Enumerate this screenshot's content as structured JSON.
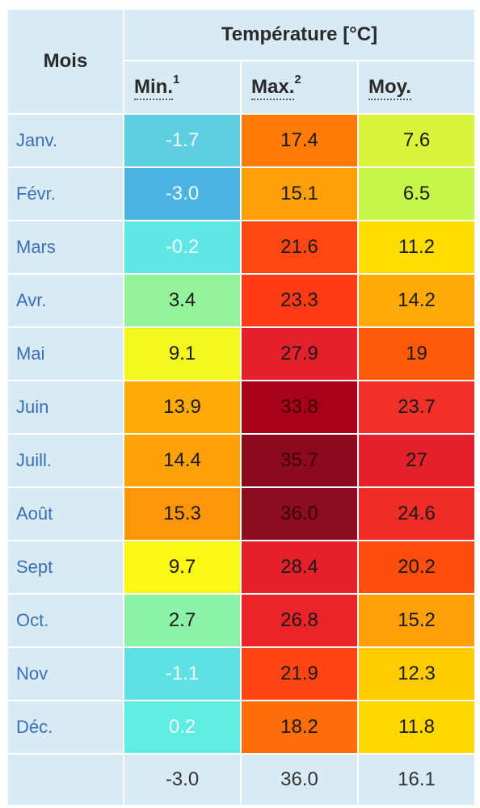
{
  "table": {
    "header": {
      "month_label": "Mois",
      "group_label": "Température [°C]",
      "columns": [
        {
          "label": "Min.",
          "sup": "1"
        },
        {
          "label": "Max.",
          "sup": "2"
        },
        {
          "label": "Moy.",
          "sup": ""
        }
      ]
    },
    "rows": [
      {
        "month": "Janv.",
        "min": "-1.7",
        "max": "17.4",
        "moy": "7.6",
        "colors": [
          "#5dcfe0",
          "#ff7b08",
          "#d9f43a"
        ]
      },
      {
        "month": "Févr.",
        "min": "-3.0",
        "max": "15.1",
        "moy": "6.5",
        "colors": [
          "#4cb4e2",
          "#ff9f0a",
          "#c6f54c"
        ]
      },
      {
        "month": "Mars",
        "min": "-0.2",
        "max": "21.6",
        "moy": "11.2",
        "colors": [
          "#5fe7e5",
          "#ff4714",
          "#ffdd00"
        ]
      },
      {
        "month": "Avr.",
        "min": "3.4",
        "max": "23.3",
        "moy": "14.2",
        "colors": [
          "#94f29a",
          "#ff3a16",
          "#ffaa08"
        ]
      },
      {
        "month": "Mai",
        "min": "9.1",
        "max": "27.9",
        "moy": "19",
        "colors": [
          "#f4f620",
          "#e4202c",
          "#ff5a0a"
        ]
      },
      {
        "month": "Juin",
        "min": "13.9",
        "max": "33.8",
        "moy": "23.7",
        "colors": [
          "#ffaa08",
          "#a8021a",
          "#f2302a"
        ]
      },
      {
        "month": "Juill.",
        "min": "14.4",
        "max": "35.7",
        "moy": "27",
        "colors": [
          "#ffa20a",
          "#8c0a1e",
          "#e4202c"
        ]
      },
      {
        "month": "Août",
        "min": "15.3",
        "max": "36.0",
        "moy": "24.6",
        "colors": [
          "#ff9508",
          "#8a0d22",
          "#ef2c28"
        ]
      },
      {
        "month": "Sept",
        "min": "9.7",
        "max": "28.4",
        "moy": "20.2",
        "colors": [
          "#fbf815",
          "#e4202c",
          "#ff4d0f"
        ]
      },
      {
        "month": "Oct.",
        "min": "2.7",
        "max": "26.8",
        "moy": "15.2",
        "colors": [
          "#8cf2a8",
          "#ea2428",
          "#ff9f0a"
        ]
      },
      {
        "month": "Nov",
        "min": "-1.1",
        "max": "21.9",
        "moy": "12.3",
        "colors": [
          "#5fe0e4",
          "#ff4514",
          "#ffcc00"
        ]
      },
      {
        "month": "Déc.",
        "min": "0.2",
        "max": "18.2",
        "moy": "11.8",
        "colors": [
          "#60ece0",
          "#ff6e0a",
          "#ffd800"
        ]
      }
    ],
    "summary": {
      "month": "",
      "min": "-3.0",
      "max": "36.0",
      "moy": "16.1"
    }
  }
}
